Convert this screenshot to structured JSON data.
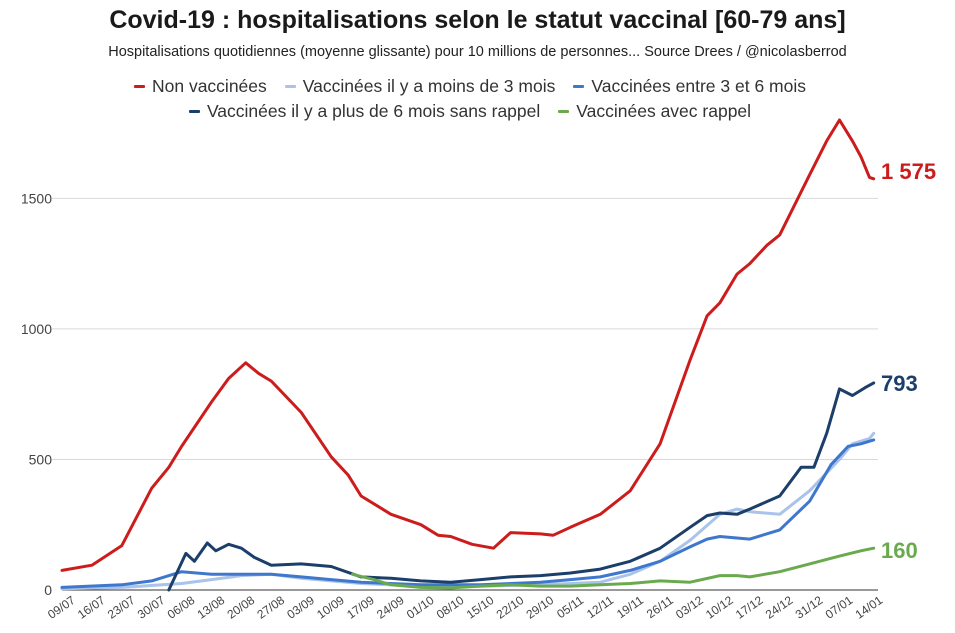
{
  "chart_data": {
    "type": "line",
    "title": "Covid-19 : hospitalisations selon le statut vaccinal [60-79 ans]",
    "subtitle": "Hospitalisations quotidiennes (moyenne glissante) pour 10 millions de personnes... Source Drees / @nicolasberrod",
    "xlabel": "",
    "ylabel": "",
    "ylim": [
      0,
      1800
    ],
    "yticks": [
      "0",
      "500",
      "1000",
      "1500"
    ],
    "ytick_values": [
      0,
      500,
      1000,
      1500
    ],
    "xticks": [
      "09/07",
      "16/07",
      "23/07",
      "30/07",
      "06/08",
      "13/08",
      "20/08",
      "27/08",
      "03/09",
      "10/09",
      "17/09",
      "24/09",
      "01/10",
      "08/10",
      "15/10",
      "22/10",
      "29/10",
      "05/11",
      "12/11",
      "19/11",
      "26/11",
      "03/12",
      "10/12",
      "17/12",
      "24/12",
      "31/12",
      "07/01",
      "14/01"
    ],
    "x_start": "2021-07-09",
    "x_end": "2022-01-16",
    "grid": true,
    "legend_position": "top",
    "series": [
      {
        "name": "Non vaccinées",
        "color": "#cc1c1c",
        "end_label": "1 575",
        "points": [
          [
            "2021-07-09",
            75
          ],
          [
            "2021-07-16",
            95
          ],
          [
            "2021-07-23",
            170
          ],
          [
            "2021-07-30",
            390
          ],
          [
            "2021-08-03",
            470
          ],
          [
            "2021-08-06",
            550
          ],
          [
            "2021-08-13",
            720
          ],
          [
            "2021-08-17",
            810
          ],
          [
            "2021-08-21",
            870
          ],
          [
            "2021-08-24",
            830
          ],
          [
            "2021-08-27",
            800
          ],
          [
            "2021-09-03",
            680
          ],
          [
            "2021-09-10",
            510
          ],
          [
            "2021-09-14",
            440
          ],
          [
            "2021-09-17",
            360
          ],
          [
            "2021-09-24",
            290
          ],
          [
            "2021-10-01",
            250
          ],
          [
            "2021-10-05",
            210
          ],
          [
            "2021-10-08",
            205
          ],
          [
            "2021-10-13",
            175
          ],
          [
            "2021-10-18",
            160
          ],
          [
            "2021-10-22",
            220
          ],
          [
            "2021-10-29",
            215
          ],
          [
            "2021-11-01",
            210
          ],
          [
            "2021-11-05",
            240
          ],
          [
            "2021-11-12",
            290
          ],
          [
            "2021-11-19",
            380
          ],
          [
            "2021-11-26",
            560
          ],
          [
            "2021-12-03",
            880
          ],
          [
            "2021-12-07",
            1050
          ],
          [
            "2021-12-10",
            1100
          ],
          [
            "2021-12-14",
            1210
          ],
          [
            "2021-12-17",
            1250
          ],
          [
            "2021-12-21",
            1320
          ],
          [
            "2021-12-24",
            1360
          ],
          [
            "2021-12-31",
            1590
          ],
          [
            "2022-01-04",
            1720
          ],
          [
            "2022-01-07",
            1800
          ],
          [
            "2022-01-10",
            1720
          ],
          [
            "2022-01-12",
            1660
          ],
          [
            "2022-01-14",
            1580
          ],
          [
            "2022-01-15",
            1575
          ]
        ]
      },
      {
        "name": "Vaccinées il y a moins de 3 mois",
        "color": "#a9c3ea",
        "end_label": "",
        "points": [
          [
            "2021-07-09",
            5
          ],
          [
            "2021-07-23",
            10
          ],
          [
            "2021-08-06",
            25
          ],
          [
            "2021-08-13",
            40
          ],
          [
            "2021-08-20",
            55
          ],
          [
            "2021-08-27",
            60
          ],
          [
            "2021-09-03",
            45
          ],
          [
            "2021-09-10",
            35
          ],
          [
            "2021-09-17",
            25
          ],
          [
            "2021-10-01",
            15
          ],
          [
            "2021-10-15",
            15
          ],
          [
            "2021-10-29",
            20
          ],
          [
            "2021-11-12",
            30
          ],
          [
            "2021-11-19",
            60
          ],
          [
            "2021-11-26",
            110
          ],
          [
            "2021-12-03",
            190
          ],
          [
            "2021-12-10",
            290
          ],
          [
            "2021-12-14",
            310
          ],
          [
            "2021-12-17",
            300
          ],
          [
            "2021-12-24",
            290
          ],
          [
            "2021-12-31",
            380
          ],
          [
            "2022-01-07",
            500
          ],
          [
            "2022-01-10",
            560
          ],
          [
            "2022-01-14",
            580
          ],
          [
            "2022-01-15",
            600
          ]
        ]
      },
      {
        "name": "Vaccinées entre 3 et 6 mois",
        "color": "#3f77cc",
        "end_label": "",
        "points": [
          [
            "2021-07-09",
            10
          ],
          [
            "2021-07-23",
            20
          ],
          [
            "2021-07-30",
            35
          ],
          [
            "2021-08-06",
            70
          ],
          [
            "2021-08-13",
            60
          ],
          [
            "2021-08-27",
            60
          ],
          [
            "2021-09-03",
            50
          ],
          [
            "2021-09-10",
            40
          ],
          [
            "2021-09-17",
            30
          ],
          [
            "2021-10-01",
            20
          ],
          [
            "2021-10-15",
            20
          ],
          [
            "2021-10-29",
            30
          ],
          [
            "2021-11-05",
            40
          ],
          [
            "2021-11-12",
            50
          ],
          [
            "2021-11-19",
            75
          ],
          [
            "2021-11-26",
            110
          ],
          [
            "2021-12-03",
            165
          ],
          [
            "2021-12-07",
            195
          ],
          [
            "2021-12-10",
            205
          ],
          [
            "2021-12-17",
            195
          ],
          [
            "2021-12-24",
            230
          ],
          [
            "2021-12-31",
            340
          ],
          [
            "2022-01-05",
            480
          ],
          [
            "2022-01-09",
            550
          ],
          [
            "2022-01-12",
            560
          ],
          [
            "2022-01-15",
            575
          ]
        ]
      },
      {
        "name": "Vaccinées il y a plus de 6 mois sans rappel",
        "color": "#1b3e6b",
        "end_label": "793",
        "points": [
          [
            "2021-08-03",
            0
          ],
          [
            "2021-08-07",
            140
          ],
          [
            "2021-08-09",
            110
          ],
          [
            "2021-08-12",
            180
          ],
          [
            "2021-08-14",
            150
          ],
          [
            "2021-08-17",
            175
          ],
          [
            "2021-08-20",
            160
          ],
          [
            "2021-08-23",
            125
          ],
          [
            "2021-08-27",
            95
          ],
          [
            "2021-09-03",
            100
          ],
          [
            "2021-09-10",
            90
          ],
          [
            "2021-09-17",
            50
          ],
          [
            "2021-09-24",
            45
          ],
          [
            "2021-10-01",
            35
          ],
          [
            "2021-10-08",
            30
          ],
          [
            "2021-10-15",
            40
          ],
          [
            "2021-10-22",
            50
          ],
          [
            "2021-10-29",
            55
          ],
          [
            "2021-11-05",
            65
          ],
          [
            "2021-11-12",
            80
          ],
          [
            "2021-11-19",
            110
          ],
          [
            "2021-11-26",
            160
          ],
          [
            "2021-12-03",
            240
          ],
          [
            "2021-12-07",
            285
          ],
          [
            "2021-12-10",
            295
          ],
          [
            "2021-12-14",
            290
          ],
          [
            "2021-12-17",
            310
          ],
          [
            "2021-12-24",
            360
          ],
          [
            "2021-12-29",
            470
          ],
          [
            "2022-01-01",
            470
          ],
          [
            "2022-01-04",
            600
          ],
          [
            "2022-01-07",
            770
          ],
          [
            "2022-01-10",
            745
          ],
          [
            "2022-01-13",
            775
          ],
          [
            "2022-01-15",
            793
          ]
        ]
      },
      {
        "name": "Vaccinées avec rappel",
        "color": "#6aaa4f",
        "end_label": "160",
        "points": [
          [
            "2021-09-15",
            60
          ],
          [
            "2021-09-20",
            40
          ],
          [
            "2021-09-24",
            20
          ],
          [
            "2021-10-01",
            10
          ],
          [
            "2021-10-08",
            8
          ],
          [
            "2021-10-15",
            15
          ],
          [
            "2021-10-22",
            20
          ],
          [
            "2021-10-29",
            15
          ],
          [
            "2021-11-05",
            15
          ],
          [
            "2021-11-12",
            20
          ],
          [
            "2021-11-19",
            25
          ],
          [
            "2021-11-26",
            35
          ],
          [
            "2021-12-03",
            30
          ],
          [
            "2021-12-10",
            55
          ],
          [
            "2021-12-14",
            55
          ],
          [
            "2021-12-17",
            50
          ],
          [
            "2021-12-24",
            70
          ],
          [
            "2021-12-31",
            100
          ],
          [
            "2022-01-07",
            130
          ],
          [
            "2022-01-12",
            150
          ],
          [
            "2022-01-15",
            160
          ]
        ]
      }
    ]
  }
}
